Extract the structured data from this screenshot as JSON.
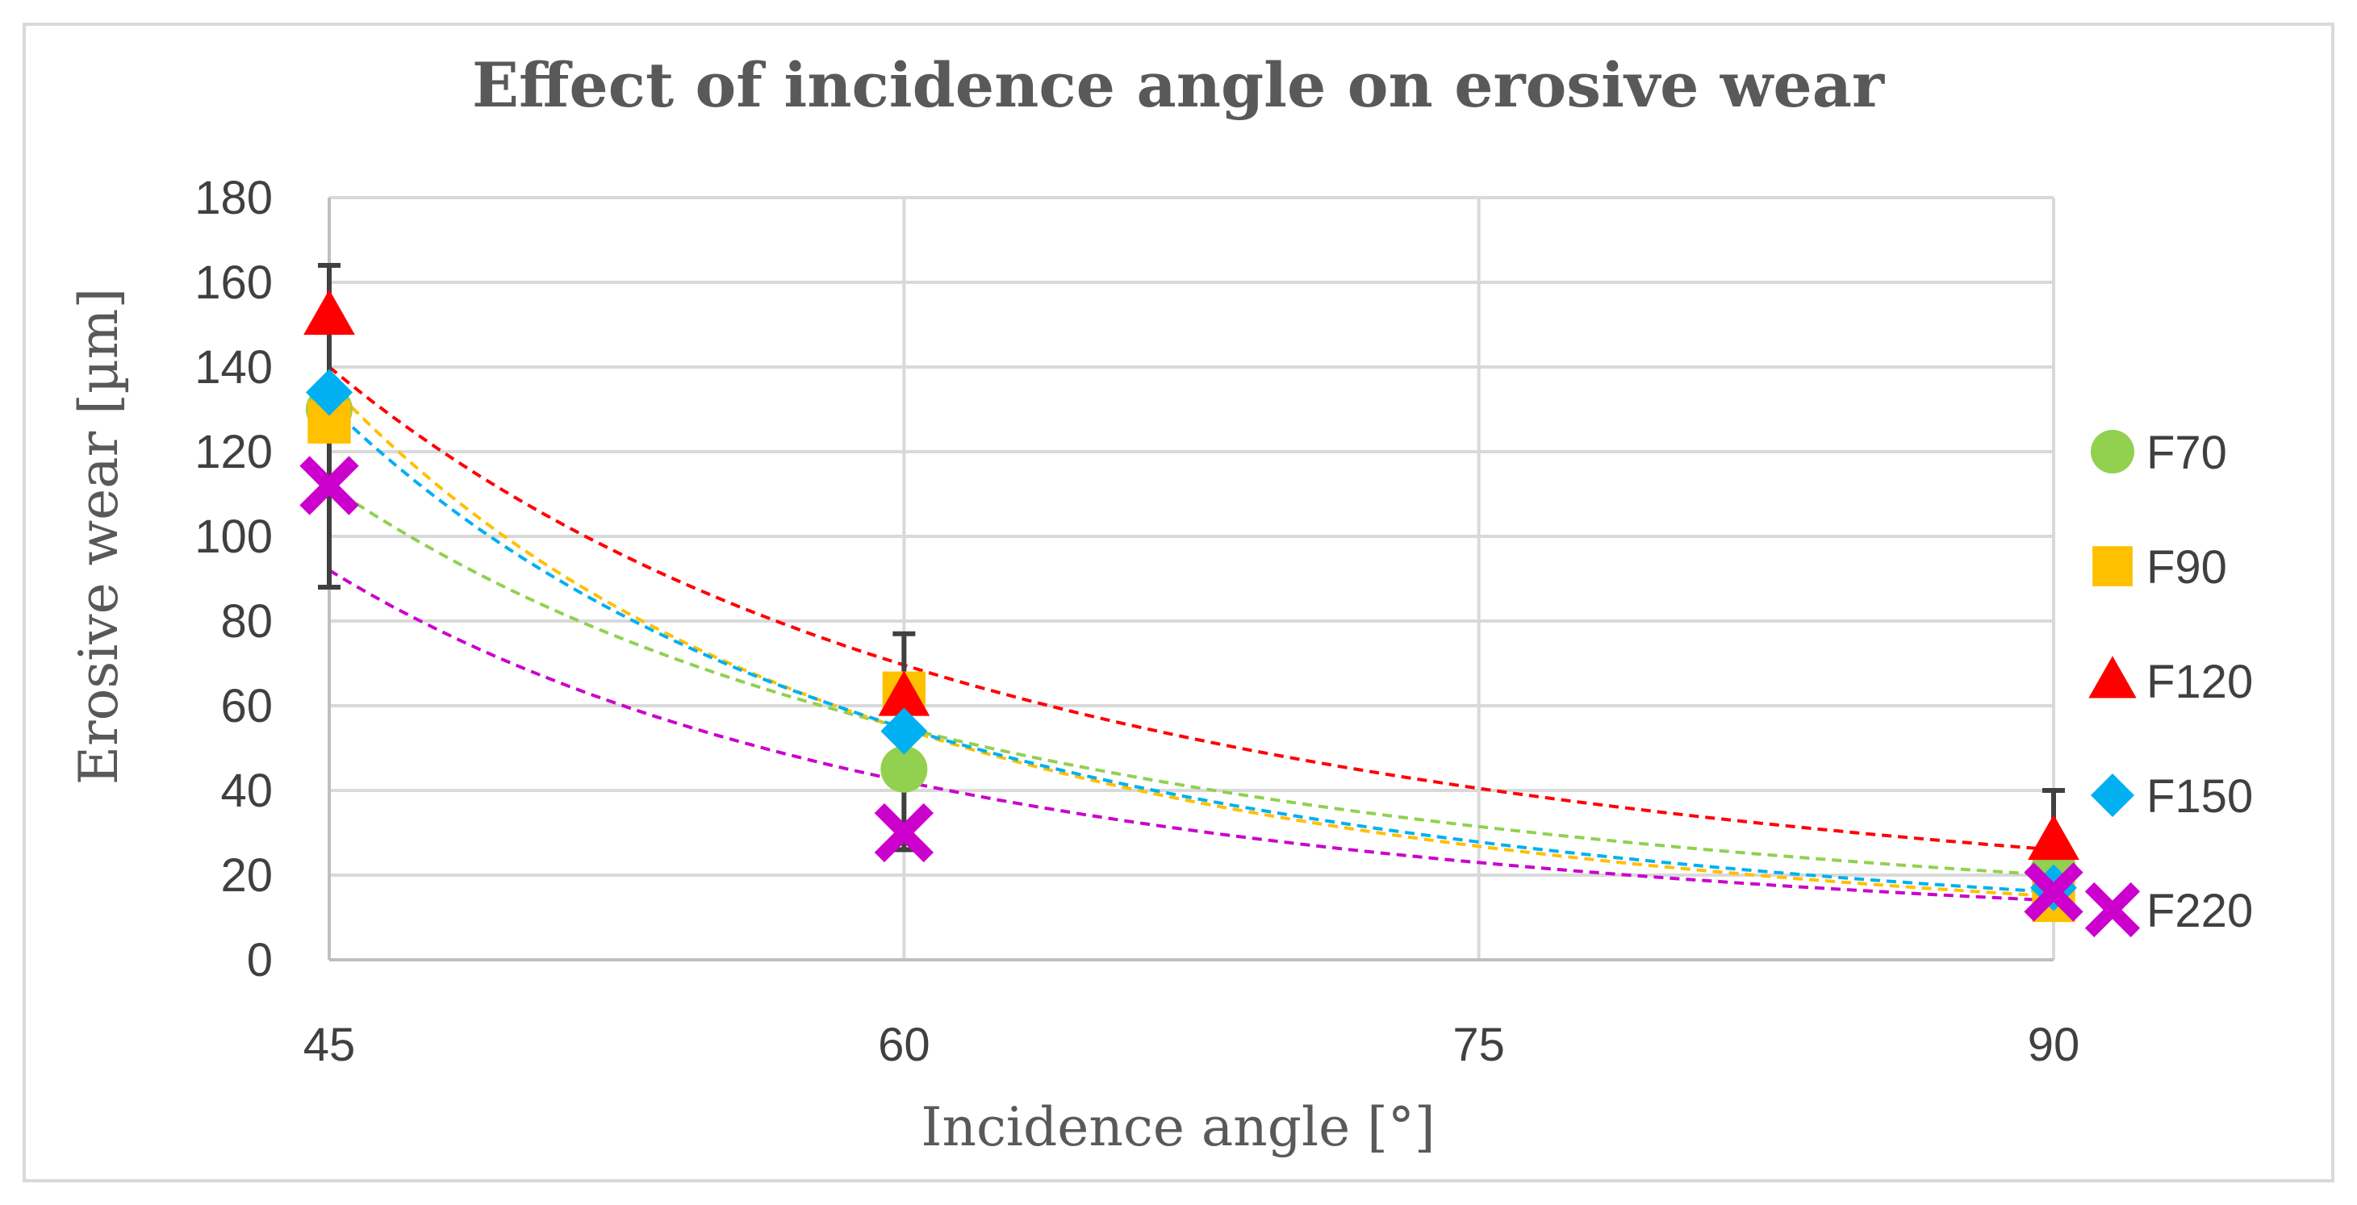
{
  "chart_data": {
    "type": "scatter",
    "title": "Effect of incidence angle on erosive wear",
    "xlabel": "Incidence angle [°]",
    "ylabel": "Erosive wear [µm]",
    "xlim": [
      45,
      90
    ],
    "ylim": [
      0,
      180
    ],
    "x_ticks": [
      45,
      60,
      75,
      90
    ],
    "y_ticks": [
      0,
      20,
      40,
      60,
      80,
      100,
      120,
      140,
      160,
      180
    ],
    "x_tick_labels": [
      "45",
      "60",
      "75",
      "90"
    ],
    "y_tick_labels": [
      "0",
      "20",
      "40",
      "60",
      "80",
      "100",
      "120",
      "140",
      "160",
      "180"
    ],
    "grid": true,
    "legend_position": "right",
    "trendline": "dashed power fit",
    "x": [
      45,
      60,
      90
    ],
    "series": [
      {
        "name": "F70",
        "values": [
          130,
          45,
          21
        ],
        "color": "#92D050",
        "marker": "circle",
        "trend": [
          112,
          55,
          20
        ]
      },
      {
        "name": "F90",
        "values": [
          127,
          63,
          14
        ],
        "color": "#FFC000",
        "marker": "square",
        "trend": [
          136,
          55,
          15
        ]
      },
      {
        "name": "F120",
        "values": [
          152,
          62,
          28
        ],
        "color": "#FF0000",
        "marker": "triangle",
        "trend": [
          140,
          70,
          26
        ]
      },
      {
        "name": "F150",
        "values": [
          134,
          54,
          17
        ],
        "color": "#00B0F0",
        "marker": "diamond",
        "trend": [
          131,
          54,
          16
        ]
      },
      {
        "name": "F220",
        "values": [
          112,
          30,
          16
        ],
        "color": "#CC00CC",
        "marker": "x",
        "trend": [
          92,
          42,
          14
        ]
      }
    ],
    "error_bars": [
      {
        "x": 45,
        "low": 88,
        "high": 164
      },
      {
        "x": 60,
        "low": 26,
        "high": 77
      },
      {
        "x": 90,
        "low": 10,
        "high": 40
      }
    ]
  }
}
